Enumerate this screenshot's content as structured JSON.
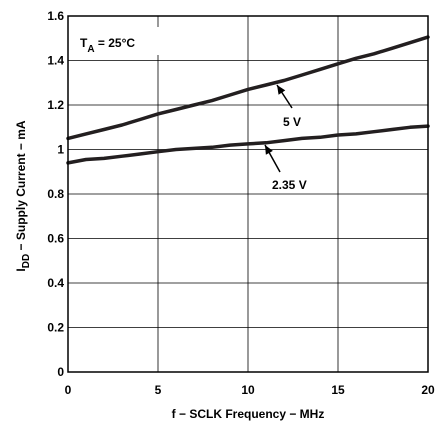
{
  "chart_data": {
    "type": "line",
    "xlabel": "f − SCLK Frequency − MHz",
    "ylabel": {
      "prefix": "I",
      "subscript": "DD",
      "suffix": " − Supply Current − mA"
    },
    "xlim": [
      0,
      20
    ],
    "ylim": [
      0,
      1.6
    ],
    "x_ticks": [
      "0",
      "5",
      "10",
      "15",
      "20"
    ],
    "y_ticks": [
      "0",
      "0.2",
      "0.4",
      "0.6",
      "0.8",
      "1",
      "1.2",
      "1.4",
      "1.6"
    ],
    "grid": true,
    "condition": {
      "symbol": "T",
      "subscript": "A",
      "value": " = 25°C"
    },
    "series": [
      {
        "name": "5 V",
        "x": [
          0,
          1,
          2,
          3,
          4,
          5,
          6,
          7,
          8,
          9,
          10,
          11,
          12,
          13,
          14,
          15,
          16,
          17,
          18,
          19,
          20
        ],
        "y": [
          1.05,
          1.07,
          1.09,
          1.11,
          1.135,
          1.16,
          1.18,
          1.2,
          1.22,
          1.245,
          1.27,
          1.29,
          1.31,
          1.335,
          1.36,
          1.385,
          1.41,
          1.43,
          1.455,
          1.48,
          1.505
        ]
      },
      {
        "name": "2.35 V",
        "x": [
          0,
          1,
          2,
          3,
          4,
          5,
          6,
          7,
          8,
          9,
          10,
          11,
          12,
          13,
          14,
          15,
          16,
          17,
          18,
          19,
          20
        ],
        "y": [
          0.94,
          0.955,
          0.96,
          0.97,
          0.98,
          0.99,
          1.0,
          1.005,
          1.01,
          1.02,
          1.025,
          1.03,
          1.04,
          1.05,
          1.055,
          1.065,
          1.07,
          1.08,
          1.09,
          1.1,
          1.105
        ]
      }
    ]
  }
}
